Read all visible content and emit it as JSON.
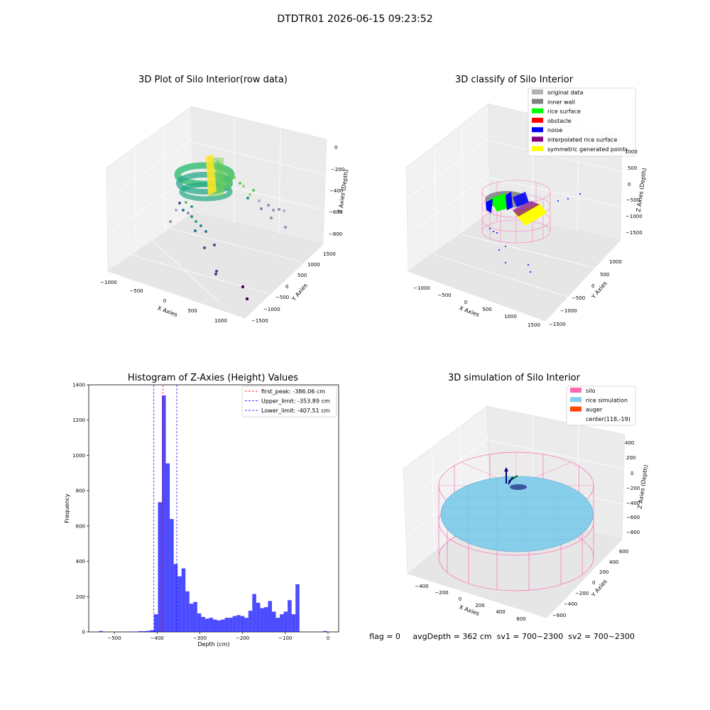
{
  "suptitle": "DTDTR01 2026-06-15 09:23:52",
  "panels": {
    "raw": {
      "title": "3D Plot of Silo Interior(row data)",
      "xlabel": "X Axies",
      "ylabel": "Y Axies",
      "zlabel": "Z Axies (Depth)",
      "xticks": [
        "−1000",
        "−500",
        "0",
        "500",
        "1000"
      ],
      "yticks": [
        "1500",
        "1000",
        "500",
        "0",
        "−500",
        "−1000",
        "−1500"
      ],
      "zticks": [
        "0",
        "−200",
        "−400",
        "−600",
        "−800"
      ]
    },
    "classify": {
      "title": "3D classify of Silo Interior",
      "xlabel": "X Axies",
      "ylabel": "Y Axies",
      "zlabel": "Z Axies (Depth)",
      "xticks": [
        "−1000",
        "−500",
        "0",
        "500",
        "1000",
        "1500"
      ],
      "yticks": [
        "1000",
        "500",
        "0",
        "−500",
        "−1000",
        "−1500"
      ],
      "zticks": [
        "1000",
        "500",
        "0",
        "−500",
        "−1000",
        "−1500"
      ],
      "legend": [
        {
          "label": "original data",
          "color": "#b3b3b3"
        },
        {
          "label": "inner wall",
          "color": "#808080"
        },
        {
          "label": "rice surface",
          "color": "#00ff00"
        },
        {
          "label": "obstacle",
          "color": "#ff0000"
        },
        {
          "label": "noise",
          "color": "#0000ff"
        },
        {
          "label": "interpolated rice surface",
          "color": "#800080"
        },
        {
          "label": "symmetric generated points",
          "color": "#ffff00"
        }
      ]
    },
    "simulation": {
      "title": "3D simulation of Silo Interior",
      "xlabel": "X Axies",
      "ylabel": "Y Axies",
      "zlabel": "Z Axies (Depth)",
      "xticks": [
        "−400",
        "−200",
        "0",
        "200",
        "400",
        "600"
      ],
      "yticks": [
        "600",
        "400",
        "200",
        "0",
        "−200",
        "−400",
        "−600"
      ],
      "zticks": [
        "400",
        "200",
        "0",
        "−200",
        "−400",
        "−600",
        "−800"
      ],
      "legend": [
        {
          "label": "silo",
          "color": "#ff69b4"
        },
        {
          "label": "rice simulation",
          "color": "#87ceeb"
        },
        {
          "label": "auger",
          "color": "#ff4500"
        },
        {
          "label": "center(118,-19)",
          "color": ""
        }
      ]
    }
  },
  "status_line": "flag = 0     avgDepth = 362 cm  sv1 = 700~2300  sv2 = 700~2300",
  "chart_data": {
    "type": "bar",
    "title": "Histogram of Z-Axies (Height) Values",
    "xlabel": "Depth (cm)",
    "ylabel": "Frequency",
    "xlim": [
      -560,
      25
    ],
    "ylim": [
      0,
      1400
    ],
    "xticks": [
      -500,
      -400,
      -300,
      -200,
      -100,
      0
    ],
    "yticks": [
      0,
      200,
      400,
      600,
      800,
      1000,
      1200,
      1400
    ],
    "bar_color": "#0000ff",
    "bin_width": 9.2,
    "bin_starts": [
      -536.0,
      -526.8,
      -517.6,
      -508.4,
      -499.2,
      -490.0,
      -480.8,
      -471.6,
      -462.4,
      -453.2,
      -444.0,
      -434.8,
      -425.6,
      -416.4,
      -407.2,
      -398.0,
      -388.8,
      -379.6,
      -370.4,
      -361.2,
      -352.0,
      -342.8,
      -333.6,
      -324.4,
      -315.2,
      -306.0,
      -296.8,
      -287.6,
      -278.4,
      -269.2,
      -260.0,
      -250.8,
      -241.6,
      -232.4,
      -223.2,
      -214.0,
      -204.8,
      -195.6,
      -186.4,
      -177.2,
      -168.0,
      -158.8,
      -149.6,
      -140.4,
      -131.2,
      -122.0,
      -112.8,
      -103.6,
      -94.4,
      -85.2,
      -76.0,
      -66.8,
      -57.6,
      -48.4,
      -39.2,
      -30.0,
      -20.8,
      -11.6,
      -2.4
    ],
    "counts": [
      5,
      0,
      0,
      0,
      0,
      0,
      0,
      0,
      2,
      2,
      4,
      4,
      6,
      10,
      100,
      735,
      1340,
      955,
      640,
      385,
      315,
      360,
      230,
      160,
      170,
      105,
      85,
      75,
      80,
      70,
      65,
      70,
      80,
      80,
      90,
      95,
      90,
      80,
      120,
      215,
      165,
      135,
      140,
      175,
      115,
      80,
      100,
      115,
      180,
      100,
      270,
      0,
      0,
      0,
      0,
      0,
      0,
      5,
      0
    ],
    "vlines": [
      {
        "label": "first_peak: -386.06 cm",
        "x": -386.06,
        "color": "#ff0000"
      },
      {
        "label": "Upper_limit: -353.89 cm",
        "x": -353.89,
        "color": "#0000ff"
      },
      {
        "label": "Lower_limit: -407.51 cm",
        "x": -407.51,
        "color": "#0000ff"
      }
    ],
    "legend_position": "upper right"
  }
}
